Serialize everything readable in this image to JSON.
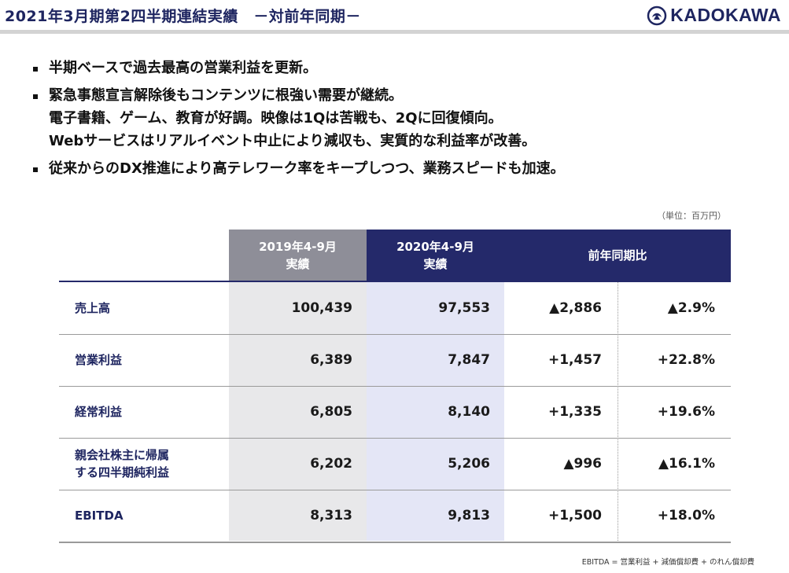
{
  "header": {
    "title": "2021年3月期第2四半期連結実績　－対前年同期－",
    "logo_text": "KADOKAWA",
    "logo_icon": "kadokawa-phoenix-emblem"
  },
  "bullets": [
    {
      "lines": [
        "半期ベースで過去最高の営業利益を更新。"
      ]
    },
    {
      "lines": [
        "緊急事態宣言解除後もコンテンツに根強い需要が継続。",
        "電子書籍、ゲーム、教育が好調。映像は1Qは苦戦も、2Qに回復傾向。",
        "Webサービスはリアルイベント中止により減収も、実質的な利益率が改善。"
      ]
    },
    {
      "lines": [
        "従来からのDX推進により高テレワーク率をキープしつつ、業務スピードも加速。"
      ]
    }
  ],
  "unit_note": "（単位：百万円）",
  "table": {
    "headers": {
      "prev_line1": "2019年4-9月",
      "prev_line2": "実績",
      "curr_line1": "2020年4-9月",
      "curr_line2": "実績",
      "yoy": "前年同期比"
    },
    "rows": [
      {
        "label_l1": "売上高",
        "label_l2": "",
        "prev": "100,439",
        "curr": "97,553",
        "diff": "▲2,886",
        "pct": "▲2.9%"
      },
      {
        "label_l1": "営業利益",
        "label_l2": "",
        "prev": "6,389",
        "curr": "7,847",
        "diff": "+1,457",
        "pct": "+22.8%"
      },
      {
        "label_l1": "経常利益",
        "label_l2": "",
        "prev": "6,805",
        "curr": "8,140",
        "diff": "+1,335",
        "pct": "+19.6%"
      },
      {
        "label_l1": "親会社株主に帰属",
        "label_l2": "する四半期純利益",
        "prev": "6,202",
        "curr": "5,206",
        "diff": "▲996",
        "pct": "▲16.1%"
      },
      {
        "label_l1": "EBITDA",
        "label_l2": "",
        "prev": "8,313",
        "curr": "9,813",
        "diff": "+1,500",
        "pct": "+18.0%"
      }
    ]
  },
  "footnote": "EBITDA = 営業利益 + 減価償却費 + のれん償却費",
  "colors": {
    "navy": "#24296a",
    "gray_header": "#8e8e98",
    "prev_col_bg": "#e8e8ea",
    "curr_col_bg": "#e4e6f6"
  }
}
